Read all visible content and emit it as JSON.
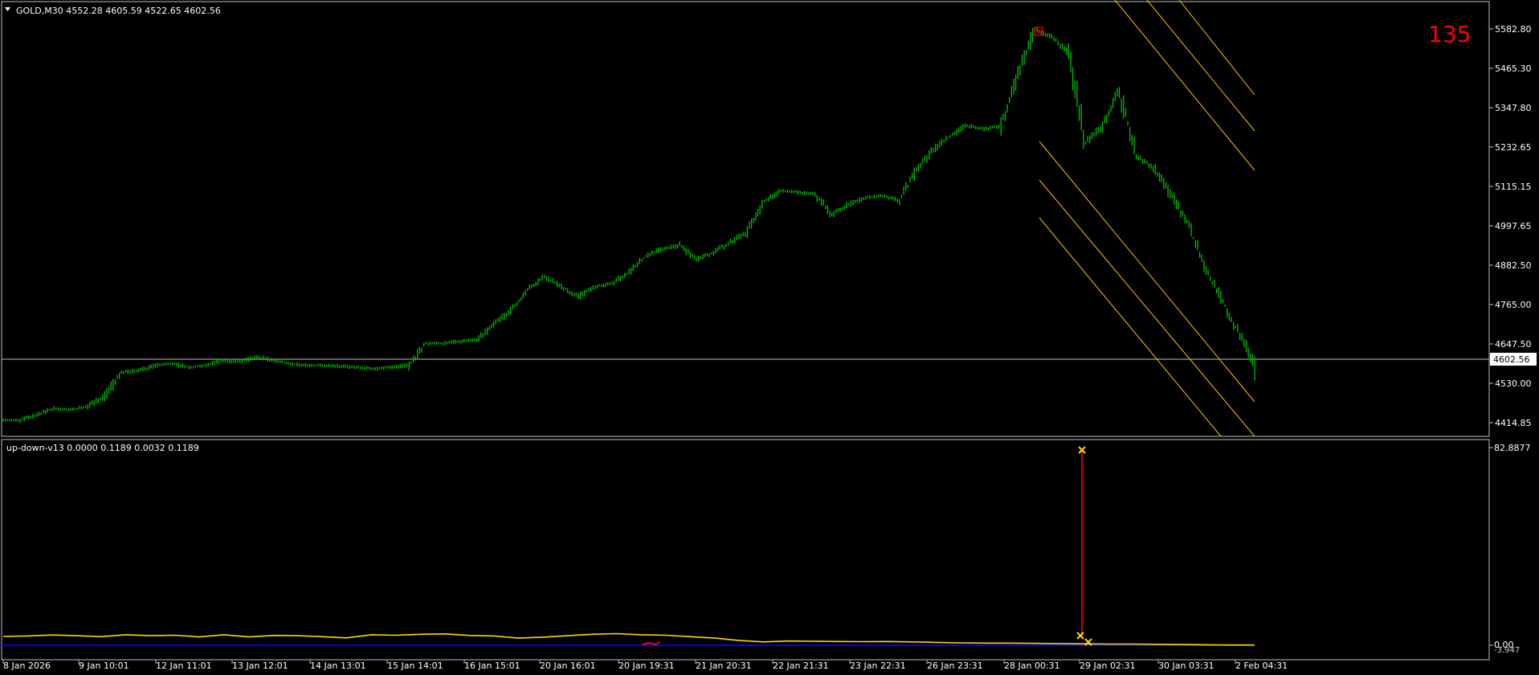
{
  "main_chart": {
    "header": "GOLD,M30  4552.28 4605.59 4522.65 4602.56",
    "counter": "135",
    "current_price": "4602.56",
    "price_ticks": [
      "5582.80",
      "5465.30",
      "5347.80",
      "5232.65",
      "5115.15",
      "4997.65",
      "4882.50",
      "4765.00",
      "4647.50",
      "4530.00",
      "4414.85"
    ],
    "colors": {
      "background": "#000000",
      "candles": "#00c000",
      "channel": "#ffc000",
      "grid": "#c0c0c0",
      "counter": "#ff0000",
      "marker": "#ff0000"
    }
  },
  "indicator": {
    "header": "up-down-v13 0.0000 0.1189 0.0032 0.1189",
    "top_label": "82.8877",
    "zero_label": "0.00",
    "bottom_label": "-3.947",
    "colors": {
      "line": "#ffd700",
      "baseline": "#0000ff",
      "spike": "#ff0000",
      "cross": "#ffd700"
    }
  },
  "time_axis": {
    "labels": [
      "8 Jan 2026",
      "9 Jan 10:01",
      "12 Jan 11:01",
      "13 Jan 12:01",
      "14 Jan 13:01",
      "15 Jan 14:01",
      "16 Jan 15:01",
      "20 Jan 16:01",
      "20 Jan 19:31",
      "21 Jan 20:31",
      "22 Jan 21:31",
      "23 Jan 22:31",
      "26 Jan 23:31",
      "28 Jan 00:31",
      "29 Jan 02:31",
      "30 Jan 03:31",
      "2 Feb 04:31"
    ]
  },
  "chart_data": [
    {
      "type": "line",
      "title": "GOLD,M30",
      "ylim": [
        4400,
        5620
      ],
      "x_labels": [
        "8 Jan 2026",
        "9 Jan 10:01",
        "12 Jan 11:01",
        "13 Jan 12:01",
        "14 Jan 13:01",
        "15 Jan 14:01",
        "16 Jan 15:01",
        "20 Jan 16:01",
        "20 Jan 19:31",
        "21 Jan 20:31",
        "22 Jan 21:31",
        "23 Jan 22:31",
        "26 Jan 23:31",
        "28 Jan 00:31",
        "29 Jan 02:31",
        "30 Jan 03:31",
        "2 Feb 04:31"
      ],
      "series": [
        {
          "values": [
            4440,
            4440,
            4455,
            4475,
            4470,
            4480,
            4510,
            4580,
            4585,
            4600,
            4605,
            4595,
            4600,
            4615,
            4610,
            4625,
            4615,
            4605,
            4600,
            4600,
            4598,
            4594,
            4590,
            4595,
            4600,
            4665,
            4665,
            4670,
            4675,
            4720,
            4760,
            4820,
            4860,
            4830,
            4800,
            4830,
            4840,
            4870,
            4920,
            4940,
            4950,
            4910,
            4930,
            4960,
            4990,
            5080,
            5110,
            5105,
            5100,
            5040,
            5070,
            5090,
            5095,
            5080,
            5170,
            5230,
            5270,
            5300,
            5290,
            5300,
            5450,
            5580,
            5560,
            5510,
            5250,
            5300,
            5400,
            5210,
            5180,
            5100,
            5020,
            4890,
            4800,
            4700,
            4605
          ]
        }
      ],
      "last_value": 4602.56
    },
    {
      "type": "line",
      "title": "up-down-v13",
      "ylim": [
        -3.947,
        82.8877
      ],
      "series": [
        {
          "values": [
            3.7,
            3.9,
            4.3,
            4.0,
            3.6,
            4.4,
            4.0,
            4.2,
            3.5,
            4.4,
            3.5,
            4.1,
            4.0,
            3.6,
            3.1,
            4.4,
            4.2,
            4.6,
            4.8,
            4.1,
            3.9,
            3.0,
            3.4,
            4.0,
            4.6,
            4.9,
            4.4,
            4.2,
            3.6,
            3.0,
            2.0,
            1.4,
            1.8,
            1.7,
            1.6,
            1.5,
            1.6,
            1.4,
            1.2,
            1.0,
            0.9,
            0.9,
            0.8,
            0.7,
            0.6,
            0.5,
            0.5,
            0.4,
            0.3,
            0.2,
            0.1,
            0.1
          ]
        },
        {
          "values": [
            80
          ]
        }
      ]
    }
  ]
}
